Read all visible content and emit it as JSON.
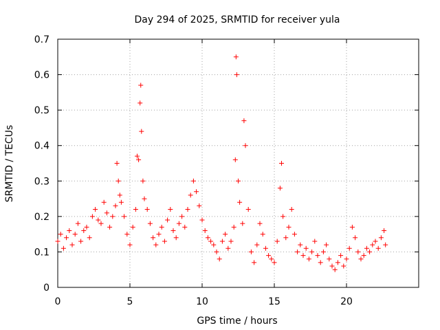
{
  "chart_data": {
    "type": "scatter",
    "title": "Day 294 of 2025, SRMTID for receiver yula",
    "xlabel": "GPS time / hours",
    "ylabel": "SRMTID / TECUs",
    "xlim": [
      0,
      25
    ],
    "ylim": [
      0,
      0.7
    ],
    "x_ticks": [
      0,
      5,
      10,
      15,
      20
    ],
    "x_tick_labels": [
      "0",
      "5",
      "10",
      "15",
      "20"
    ],
    "y_ticks": [
      0,
      0.1,
      0.2,
      0.3,
      0.4,
      0.5,
      0.6,
      0.7
    ],
    "y_tick_labels": [
      "0",
      "0.1",
      "0.2",
      "0.3",
      "0.4",
      "0.5",
      "0.6",
      "0.7"
    ],
    "grid": true,
    "marker": "+",
    "color": "#ff0000",
    "series": [
      {
        "name": "SRMTID",
        "x": [
          0.0,
          0.2,
          0.4,
          0.6,
          0.8,
          1.0,
          1.2,
          1.4,
          1.6,
          1.8,
          2.0,
          2.2,
          2.4,
          2.6,
          2.8,
          3.0,
          3.2,
          3.4,
          3.6,
          3.8,
          4.0,
          4.1,
          4.2,
          4.3,
          4.4,
          4.6,
          4.8,
          5.0,
          5.2,
          5.4,
          5.5,
          5.6,
          5.7,
          5.75,
          5.8,
          5.9,
          6.0,
          6.2,
          6.4,
          6.6,
          6.8,
          7.0,
          7.2,
          7.4,
          7.6,
          7.8,
          8.0,
          8.2,
          8.4,
          8.6,
          8.8,
          9.0,
          9.2,
          9.4,
          9.6,
          9.8,
          10.0,
          10.2,
          10.4,
          10.6,
          10.8,
          11.0,
          11.2,
          11.4,
          11.6,
          11.8,
          12.0,
          12.2,
          12.3,
          12.35,
          12.4,
          12.5,
          12.6,
          12.8,
          12.9,
          13.0,
          13.2,
          13.4,
          13.6,
          13.8,
          14.0,
          14.2,
          14.4,
          14.6,
          14.8,
          15.0,
          15.2,
          15.4,
          15.5,
          15.6,
          15.8,
          16.0,
          16.2,
          16.4,
          16.6,
          16.8,
          17.0,
          17.2,
          17.4,
          17.6,
          17.8,
          18.0,
          18.2,
          18.4,
          18.6,
          18.8,
          19.0,
          19.2,
          19.4,
          19.6,
          19.8,
          20.0,
          20.2,
          20.4,
          20.6,
          20.8,
          21.0,
          21.2,
          21.4,
          21.6,
          21.8,
          22.0,
          22.2,
          22.4,
          22.6,
          22.7
        ],
        "y": [
          0.13,
          0.15,
          0.11,
          0.14,
          0.16,
          0.12,
          0.15,
          0.18,
          0.13,
          0.16,
          0.17,
          0.14,
          0.2,
          0.22,
          0.19,
          0.18,
          0.24,
          0.21,
          0.17,
          0.2,
          0.23,
          0.35,
          0.3,
          0.26,
          0.24,
          0.2,
          0.15,
          0.12,
          0.17,
          0.22,
          0.37,
          0.36,
          0.52,
          0.57,
          0.44,
          0.3,
          0.25,
          0.22,
          0.18,
          0.14,
          0.12,
          0.15,
          0.17,
          0.13,
          0.19,
          0.22,
          0.16,
          0.14,
          0.18,
          0.2,
          0.17,
          0.22,
          0.26,
          0.3,
          0.27,
          0.23,
          0.19,
          0.16,
          0.14,
          0.13,
          0.12,
          0.1,
          0.08,
          0.13,
          0.15,
          0.11,
          0.13,
          0.17,
          0.36,
          0.65,
          0.6,
          0.3,
          0.24,
          0.18,
          0.47,
          0.4,
          0.22,
          0.1,
          0.07,
          0.12,
          0.18,
          0.15,
          0.11,
          0.09,
          0.08,
          0.07,
          0.13,
          0.28,
          0.35,
          0.2,
          0.14,
          0.17,
          0.22,
          0.15,
          0.1,
          0.12,
          0.09,
          0.11,
          0.08,
          0.1,
          0.13,
          0.09,
          0.07,
          0.1,
          0.12,
          0.08,
          0.06,
          0.05,
          0.07,
          0.09,
          0.06,
          0.08,
          0.11,
          0.17,
          0.14,
          0.1,
          0.08,
          0.09,
          0.11,
          0.1,
          0.12,
          0.13,
          0.11,
          0.14,
          0.16,
          0.12
        ]
      }
    ]
  }
}
